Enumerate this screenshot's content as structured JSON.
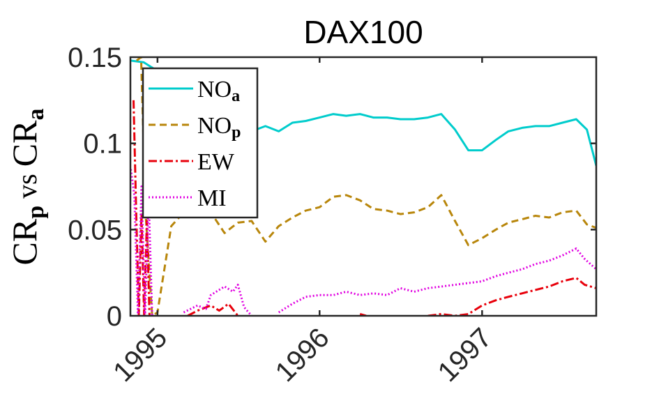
{
  "chart_data": {
    "type": "line",
    "title": "DAX100",
    "ylabel": {
      "a": "CR",
      "a_sub": "p",
      "mid": " vs ",
      "b": "CR",
      "b_sub": "a"
    },
    "xlabel": "",
    "x_ticks": [
      "1995",
      "1996",
      "1997"
    ],
    "y_ticks": [
      "0",
      "0.05",
      "0.1",
      "0.15"
    ],
    "ylim": [
      0,
      0.15
    ],
    "xlim": [
      "1994-11-01",
      "1997-09-15"
    ],
    "grid": false,
    "legend_position": "top-left",
    "series": [
      {
        "name": "NO",
        "sub": "a",
        "color": "#00CCCC",
        "dash": "solid",
        "points": [
          [
            "1994-11-01",
            0.148
          ],
          [
            "1994-12-01",
            0.147
          ],
          [
            "1995-01-01",
            0.142
          ],
          [
            "1995-02-01",
            0.118
          ],
          [
            "1995-03-01",
            0.113
          ],
          [
            "1995-04-01",
            0.108
          ],
          [
            "1995-05-01",
            0.111
          ],
          [
            "1995-06-01",
            0.111
          ],
          [
            "1995-07-01",
            0.106
          ],
          [
            "1995-08-01",
            0.107
          ],
          [
            "1995-09-01",
            0.11
          ],
          [
            "1995-10-01",
            0.107
          ],
          [
            "1995-11-01",
            0.112
          ],
          [
            "1995-12-01",
            0.113
          ],
          [
            "1996-01-01",
            0.115
          ],
          [
            "1996-02-01",
            0.117
          ],
          [
            "1996-03-01",
            0.116
          ],
          [
            "1996-04-01",
            0.117
          ],
          [
            "1996-05-01",
            0.115
          ],
          [
            "1996-06-01",
            0.115
          ],
          [
            "1996-07-01",
            0.114
          ],
          [
            "1996-08-01",
            0.114
          ],
          [
            "1996-09-01",
            0.115
          ],
          [
            "1996-10-01",
            0.117
          ],
          [
            "1996-11-01",
            0.108
          ],
          [
            "1996-12-01",
            0.096
          ],
          [
            "1997-01-01",
            0.096
          ],
          [
            "1997-02-01",
            0.102
          ],
          [
            "1997-03-01",
            0.107
          ],
          [
            "1997-04-01",
            0.109
          ],
          [
            "1997-05-01",
            0.11
          ],
          [
            "1997-06-01",
            0.11
          ],
          [
            "1997-07-01",
            0.112
          ],
          [
            "1997-08-01",
            0.114
          ],
          [
            "1997-08-25",
            0.108
          ],
          [
            "1997-09-15",
            0.087
          ]
        ]
      },
      {
        "name": "NO",
        "sub": "p",
        "color": "#B8860B",
        "dash": "dashed",
        "points": [
          [
            "1994-11-15",
            0.148
          ],
          [
            "1994-11-25",
            0.15
          ],
          [
            "1994-12-05",
            0.06
          ],
          [
            "1994-12-20",
            0.0
          ],
          [
            "1995-01-01",
            0.002
          ],
          [
            "1995-02-01",
            0.052
          ],
          [
            "1995-03-01",
            0.06
          ],
          [
            "1995-04-01",
            0.062
          ],
          [
            "1995-05-01",
            0.06
          ],
          [
            "1995-06-01",
            0.048
          ],
          [
            "1995-07-01",
            0.054
          ],
          [
            "1995-08-01",
            0.055
          ],
          [
            "1995-09-01",
            0.043
          ],
          [
            "1995-10-01",
            0.052
          ],
          [
            "1995-11-01",
            0.057
          ],
          [
            "1995-12-01",
            0.061
          ],
          [
            "1996-01-01",
            0.063
          ],
          [
            "1996-02-01",
            0.069
          ],
          [
            "1996-03-01",
            0.07
          ],
          [
            "1996-04-01",
            0.067
          ],
          [
            "1996-05-01",
            0.062
          ],
          [
            "1996-06-01",
            0.061
          ],
          [
            "1996-07-01",
            0.059
          ],
          [
            "1996-08-01",
            0.06
          ],
          [
            "1996-09-01",
            0.063
          ],
          [
            "1996-10-01",
            0.07
          ],
          [
            "1996-11-01",
            0.055
          ],
          [
            "1996-12-01",
            0.041
          ],
          [
            "1997-01-01",
            0.045
          ],
          [
            "1997-02-01",
            0.05
          ],
          [
            "1997-03-01",
            0.054
          ],
          [
            "1997-04-01",
            0.056
          ],
          [
            "1997-05-01",
            0.058
          ],
          [
            "1997-06-01",
            0.057
          ],
          [
            "1997-07-01",
            0.06
          ],
          [
            "1997-08-01",
            0.061
          ],
          [
            "1997-08-25",
            0.053
          ],
          [
            "1997-09-15",
            0.051
          ]
        ]
      },
      {
        "name": "EW",
        "sub": "",
        "color": "#E8000B",
        "dash": "dashdot",
        "points": [
          [
            "1994-11-08",
            0.125
          ],
          [
            "1994-11-14",
            0.06
          ],
          [
            "1994-11-20",
            0.0
          ],
          [
            "1994-11-26",
            0.06
          ],
          [
            "1994-12-02",
            0.0
          ],
          [
            "1994-12-08",
            0.055
          ],
          [
            "1994-12-14",
            0.0
          ],
          null,
          [
            "1995-03-10",
            0.0
          ],
          [
            "1995-04-01",
            0.003
          ],
          [
            "1995-05-01",
            0.006
          ],
          [
            "1995-05-20",
            0.003
          ],
          [
            "1995-06-10",
            0.007
          ],
          [
            "1995-07-01",
            0.0
          ],
          null,
          [
            "1996-04-01",
            0.001
          ],
          [
            "1996-04-15",
            0.0
          ],
          null,
          [
            "1996-09-01",
            0.0
          ],
          [
            "1996-10-01",
            0.001
          ],
          [
            "1996-11-01",
            0.0
          ],
          [
            "1996-12-01",
            0.001
          ],
          [
            "1997-01-01",
            0.006
          ],
          [
            "1997-02-01",
            0.009
          ],
          [
            "1997-03-01",
            0.011
          ],
          [
            "1997-04-01",
            0.013
          ],
          [
            "1997-05-01",
            0.015
          ],
          [
            "1997-06-01",
            0.017
          ],
          [
            "1997-07-01",
            0.02
          ],
          [
            "1997-08-01",
            0.022
          ],
          [
            "1997-08-20",
            0.018
          ],
          [
            "1997-09-15",
            0.016
          ]
        ]
      },
      {
        "name": "MI",
        "sub": "",
        "color": "#E000E0",
        "dash": "dotted",
        "points": [
          [
            "1994-11-02",
            0.085
          ],
          [
            "1994-11-10",
            0.07
          ],
          [
            "1994-11-18",
            0.0
          ],
          [
            "1994-11-26",
            0.075
          ],
          [
            "1994-12-04",
            0.0
          ],
          [
            "1994-12-12",
            0.07
          ],
          [
            "1994-12-20",
            0.0
          ],
          null,
          [
            "1995-03-01",
            0.002
          ],
          [
            "1995-04-01",
            0.006
          ],
          [
            "1995-04-20",
            0.004
          ],
          [
            "1995-05-01",
            0.012
          ],
          [
            "1995-06-01",
            0.017
          ],
          [
            "1995-06-20",
            0.014
          ],
          [
            "1995-07-01",
            0.018
          ],
          [
            "1995-07-15",
            0.005
          ],
          [
            "1995-08-01",
            0.0
          ],
          null,
          [
            "1995-10-01",
            0.002
          ],
          [
            "1995-11-01",
            0.007
          ],
          [
            "1995-12-01",
            0.011
          ],
          [
            "1996-01-01",
            0.012
          ],
          [
            "1996-02-01",
            0.012
          ],
          [
            "1996-03-01",
            0.014
          ],
          [
            "1996-04-01",
            0.012
          ],
          [
            "1996-05-01",
            0.013
          ],
          [
            "1996-06-01",
            0.012
          ],
          [
            "1996-07-01",
            0.016
          ],
          [
            "1996-08-01",
            0.014
          ],
          [
            "1996-09-01",
            0.016
          ],
          [
            "1996-10-01",
            0.017
          ],
          [
            "1996-11-01",
            0.018
          ],
          [
            "1996-12-01",
            0.019
          ],
          [
            "1997-01-01",
            0.02
          ],
          [
            "1997-02-01",
            0.023
          ],
          [
            "1997-03-01",
            0.025
          ],
          [
            "1997-04-01",
            0.027
          ],
          [
            "1997-05-01",
            0.03
          ],
          [
            "1997-06-01",
            0.032
          ],
          [
            "1997-07-01",
            0.035
          ],
          [
            "1997-08-01",
            0.039
          ],
          [
            "1997-08-20",
            0.033
          ],
          [
            "1997-09-15",
            0.027
          ]
        ]
      }
    ]
  }
}
